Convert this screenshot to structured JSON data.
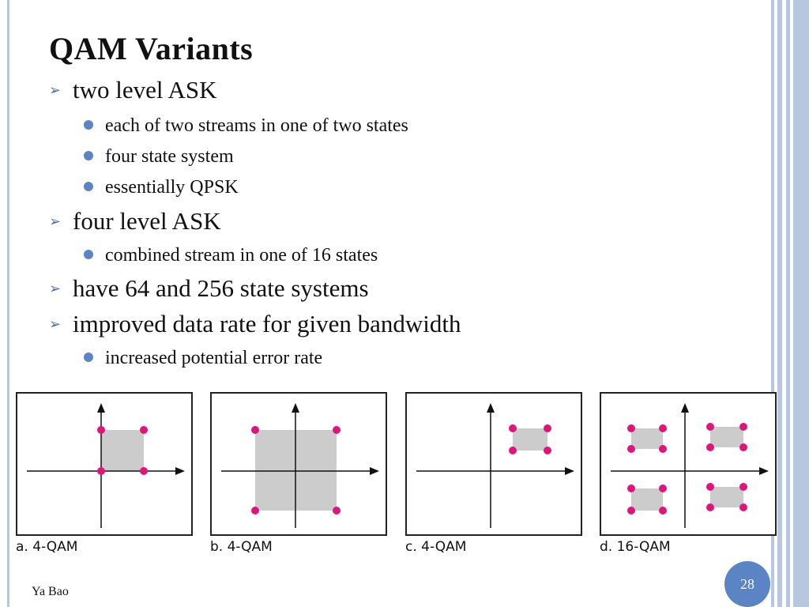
{
  "slide": {
    "title": "QAM Variants",
    "bullets": [
      {
        "text": "two level ASK",
        "sub": [
          "each of two streams in one of two states",
          "four state system",
          "essentially QPSK"
        ]
      },
      {
        "text": "four level ASK",
        "sub": [
          "combined stream in one of 16 states"
        ]
      },
      {
        "text": "have 64 and 256 state systems",
        "sub": []
      },
      {
        "text": "improved data rate for given bandwidth",
        "sub": [
          "increased potential error rate"
        ]
      }
    ],
    "author": "Ya Bao",
    "page_number": "28"
  },
  "figures": [
    {
      "caption": "a. 4-QAM"
    },
    {
      "caption": "b. 4-QAM"
    },
    {
      "caption": "c. 4-QAM"
    },
    {
      "caption": "d. 16-QAM"
    }
  ],
  "colors": {
    "frame": "#b7c7df",
    "accent": "#5b84c4",
    "constellation_point": "#e0147a",
    "region_fill": "#cccccc"
  }
}
